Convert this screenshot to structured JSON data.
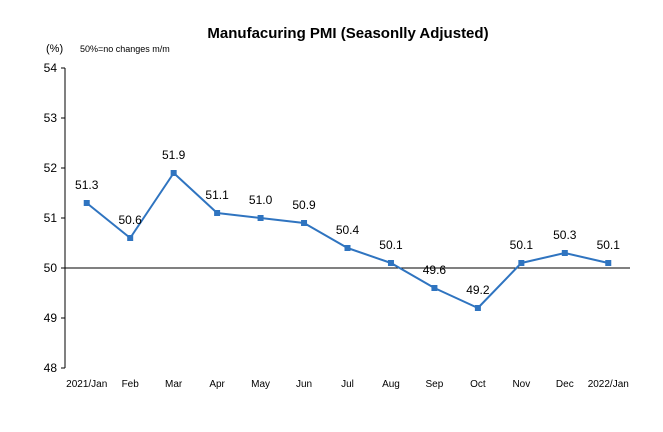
{
  "chart_data": {
    "type": "line",
    "title": "Manufacuring PMI (Seasonlly Adjusted)",
    "unit_label": "(%)",
    "note": "50%=no changes  m/m",
    "categories": [
      "2021/Jan",
      "Feb",
      "Mar",
      "Apr",
      "May",
      "Jun",
      "Jul",
      "Aug",
      "Sep",
      "Oct",
      "Nov",
      "Dec",
      "2022/Jan"
    ],
    "series": [
      {
        "values": [
          51.3,
          50.6,
          51.9,
          51.1,
          51.0,
          50.9,
          50.4,
          50.1,
          49.6,
          49.2,
          50.1,
          50.3,
          50.1
        ]
      }
    ],
    "data_labels": [
      "51.3",
      "50.6",
      "51.9",
      "51.1",
      "51.0",
      "50.9",
      "50.4",
      "50.1",
      "49.6",
      "49.2",
      "50.1",
      "50.3",
      "50.1"
    ],
    "y_ticks": [
      48,
      49,
      50,
      51,
      52,
      53,
      54
    ],
    "ylim": [
      48,
      54
    ],
    "reference_line": 50,
    "line_color": "#2F74C0",
    "marker_color": "#2F74C0",
    "grid": false
  }
}
